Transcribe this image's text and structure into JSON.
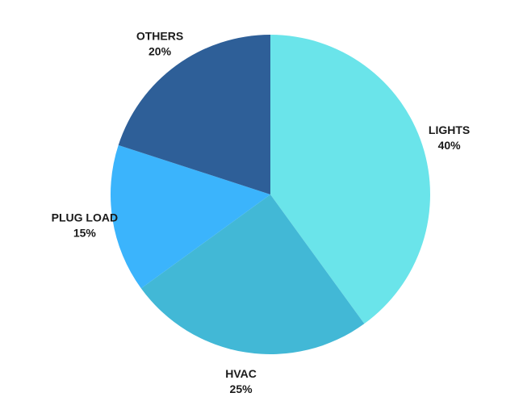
{
  "chart_data": {
    "type": "pie",
    "title": "",
    "slices": [
      {
        "label": "LIGHTS",
        "value": 40,
        "display": "40%",
        "color": "#6ae4ea"
      },
      {
        "label": "HVAC",
        "value": 25,
        "display": "25%",
        "color": "#42b8d6"
      },
      {
        "label": "PLUG LOAD",
        "value": 15,
        "display": "15%",
        "color": "#3bb4fc"
      },
      {
        "label": "OTHERS",
        "value": 20,
        "display": "20%",
        "color": "#2e5f98"
      }
    ],
    "start_angle_deg": 0,
    "direction": "clockwise",
    "labels": "outside",
    "legend": "none"
  }
}
